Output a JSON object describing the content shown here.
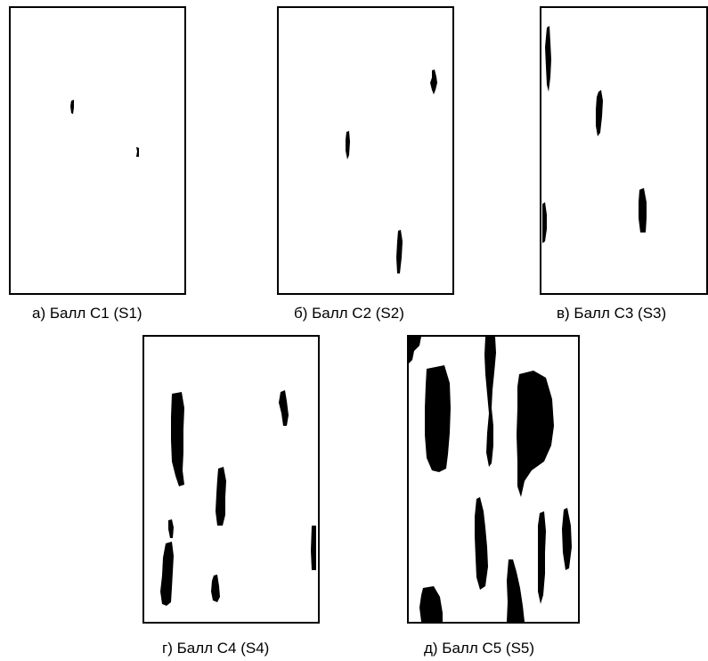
{
  "panels": [
    {
      "id": "s1",
      "caption": "а) Балл С1 (S1)"
    },
    {
      "id": "s2",
      "caption": "б) Балл С2 (S2)"
    },
    {
      "id": "s3",
      "caption": "в) Балл С3 (S3)"
    },
    {
      "id": "s4",
      "caption": "г) Балл С4 (S4)"
    },
    {
      "id": "s5",
      "caption": "д) Балл С5 (S5)"
    }
  ]
}
